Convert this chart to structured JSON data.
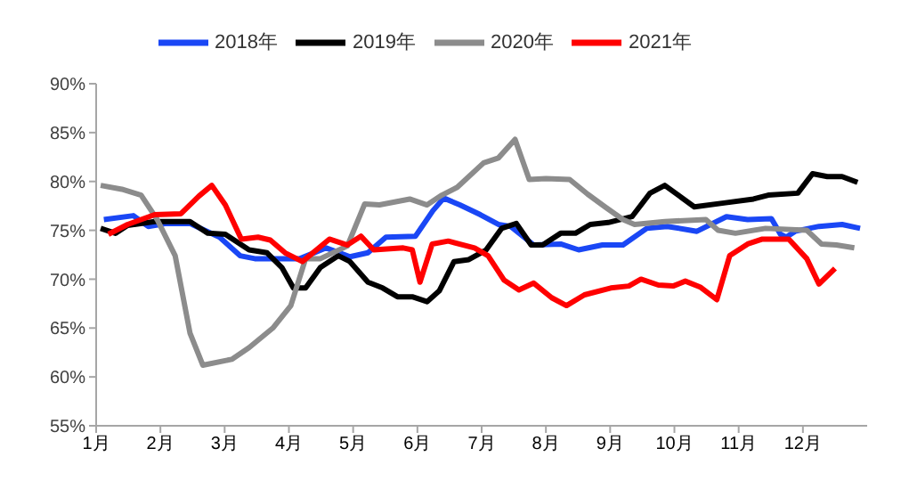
{
  "chart_data": {
    "type": "line",
    "xlim": [
      1,
      13
    ],
    "xticks": [
      {
        "value": 1,
        "label": "1月"
      },
      {
        "value": 2,
        "label": "2月"
      },
      {
        "value": 3,
        "label": "3月"
      },
      {
        "value": 4,
        "label": "4月"
      },
      {
        "value": 5,
        "label": "5月"
      },
      {
        "value": 6,
        "label": "6月"
      },
      {
        "value": 7,
        "label": "7月"
      },
      {
        "value": 8,
        "label": "8月"
      },
      {
        "value": 9,
        "label": "9月"
      },
      {
        "value": 10,
        "label": "10月"
      },
      {
        "value": 11,
        "label": "11月"
      },
      {
        "value": 12,
        "label": "12月"
      }
    ],
    "ylim": [
      55,
      90
    ],
    "yticks": [
      {
        "value": 55,
        "label": "55%"
      },
      {
        "value": 60,
        "label": "60%"
      },
      {
        "value": 65,
        "label": "65%"
      },
      {
        "value": 70,
        "label": "70%"
      },
      {
        "value": 75,
        "label": "75%"
      },
      {
        "value": 80,
        "label": "80%"
      },
      {
        "value": 85,
        "label": "85%"
      },
      {
        "value": 90,
        "label": "90%"
      }
    ],
    "grid": false,
    "legend": "top",
    "marker": "none",
    "line_style": "solid",
    "series": [
      {
        "name": "2018年",
        "color": "#1a47f5",
        "x": [
          1.12,
          1.58,
          1.81,
          2.09,
          2.46,
          2.92,
          3.24,
          3.47,
          3.8,
          4.17,
          4.58,
          4.95,
          5.23,
          5.51,
          5.97,
          6.24,
          6.41,
          6.66,
          6.98,
          7.26,
          7.45,
          7.81,
          8.23,
          8.51,
          8.88,
          9.2,
          9.57,
          9.89,
          10.35,
          10.81,
          11.14,
          11.51,
          11.65,
          11.74,
          11.88,
          12.25,
          12.61,
          12.89
        ],
        "values": [
          76.1,
          76.5,
          75.4,
          75.7,
          75.7,
          74.3,
          72.4,
          72.1,
          72.1,
          72.1,
          73.2,
          72.3,
          72.7,
          74.3,
          74.4,
          77.0,
          78.3,
          77.6,
          76.6,
          75.6,
          75.4,
          73.5,
          73.6,
          73.0,
          73.5,
          73.5,
          75.2,
          75.4,
          74.9,
          76.4,
          76.1,
          76.2,
          74.6,
          74.3,
          74.9,
          75.4,
          75.6,
          75.2
        ]
      },
      {
        "name": "2019年",
        "color": "#000000",
        "x": [
          1.07,
          1.3,
          1.49,
          1.91,
          2.46,
          2.74,
          3.01,
          3.38,
          3.66,
          3.89,
          4.07,
          4.26,
          4.49,
          4.77,
          4.95,
          5.23,
          5.46,
          5.69,
          5.92,
          6.15,
          6.34,
          6.57,
          6.8,
          7.07,
          7.31,
          7.54,
          7.77,
          7.95,
          8.23,
          8.46,
          8.69,
          8.97,
          9.34,
          9.62,
          9.85,
          10.08,
          10.31,
          10.77,
          11.23,
          11.46,
          11.92,
          12.15,
          12.38,
          12.61,
          12.85
        ],
        "values": [
          75.2,
          74.7,
          75.5,
          75.9,
          75.9,
          74.7,
          74.6,
          73.0,
          72.7,
          71.2,
          69.1,
          69.1,
          71.2,
          72.4,
          71.8,
          69.7,
          69.1,
          68.2,
          68.2,
          67.7,
          68.8,
          71.8,
          72.0,
          73.0,
          75.2,
          75.7,
          73.5,
          73.5,
          74.7,
          74.7,
          75.6,
          75.8,
          76.4,
          78.8,
          79.6,
          78.5,
          77.4,
          77.8,
          78.2,
          78.6,
          78.8,
          80.8,
          80.5,
          80.5,
          79.9
        ]
      },
      {
        "name": "2020年",
        "color": "#8c8c8c",
        "x": [
          1.07,
          1.4,
          1.7,
          1.95,
          2.23,
          2.46,
          2.66,
          3.11,
          3.38,
          3.75,
          4.03,
          4.26,
          4.49,
          4.91,
          5.18,
          5.41,
          5.88,
          6.15,
          6.38,
          6.62,
          7.03,
          7.26,
          7.52,
          7.74,
          8.0,
          8.37,
          8.65,
          8.92,
          9.2,
          9.38,
          9.85,
          10.49,
          10.68,
          10.95,
          11.42,
          12.06,
          12.29,
          12.52,
          12.8
        ],
        "values": [
          79.6,
          79.2,
          78.6,
          76.1,
          72.4,
          64.5,
          61.2,
          61.8,
          63.0,
          65.0,
          67.3,
          72.1,
          72.1,
          73.4,
          77.7,
          77.6,
          78.2,
          77.6,
          78.6,
          79.4,
          81.9,
          82.4,
          84.3,
          80.2,
          80.3,
          80.2,
          78.7,
          77.4,
          76.1,
          75.6,
          75.9,
          76.1,
          75.0,
          74.7,
          75.2,
          75.0,
          73.6,
          73.5,
          73.2
        ]
      },
      {
        "name": "2021年",
        "color": "#ff0000",
        "x": [
          1.19,
          1.49,
          1.91,
          2.32,
          2.6,
          2.8,
          3.01,
          3.26,
          3.52,
          3.71,
          3.94,
          4.21,
          4.63,
          4.91,
          5.12,
          5.32,
          5.78,
          5.92,
          6.04,
          6.23,
          6.48,
          6.89,
          7.1,
          7.35,
          7.58,
          7.81,
          8.09,
          8.32,
          8.6,
          9.01,
          9.29,
          9.48,
          9.75,
          9.98,
          10.17,
          10.4,
          10.66,
          10.86,
          11.14,
          11.37,
          11.78,
          12.06,
          12.25,
          12.5
        ],
        "values": [
          74.6,
          75.6,
          76.6,
          76.7,
          78.5,
          79.6,
          77.6,
          74.1,
          74.3,
          74.0,
          72.7,
          71.8,
          74.1,
          73.5,
          74.4,
          73.0,
          73.2,
          73.0,
          69.7,
          73.6,
          73.9,
          73.2,
          72.4,
          69.9,
          68.9,
          69.6,
          68.1,
          67.3,
          68.4,
          69.1,
          69.3,
          70.0,
          69.4,
          69.3,
          69.8,
          69.2,
          67.9,
          72.4,
          73.6,
          74.1,
          74.1,
          72.1,
          69.5,
          71.1
        ]
      }
    ]
  }
}
